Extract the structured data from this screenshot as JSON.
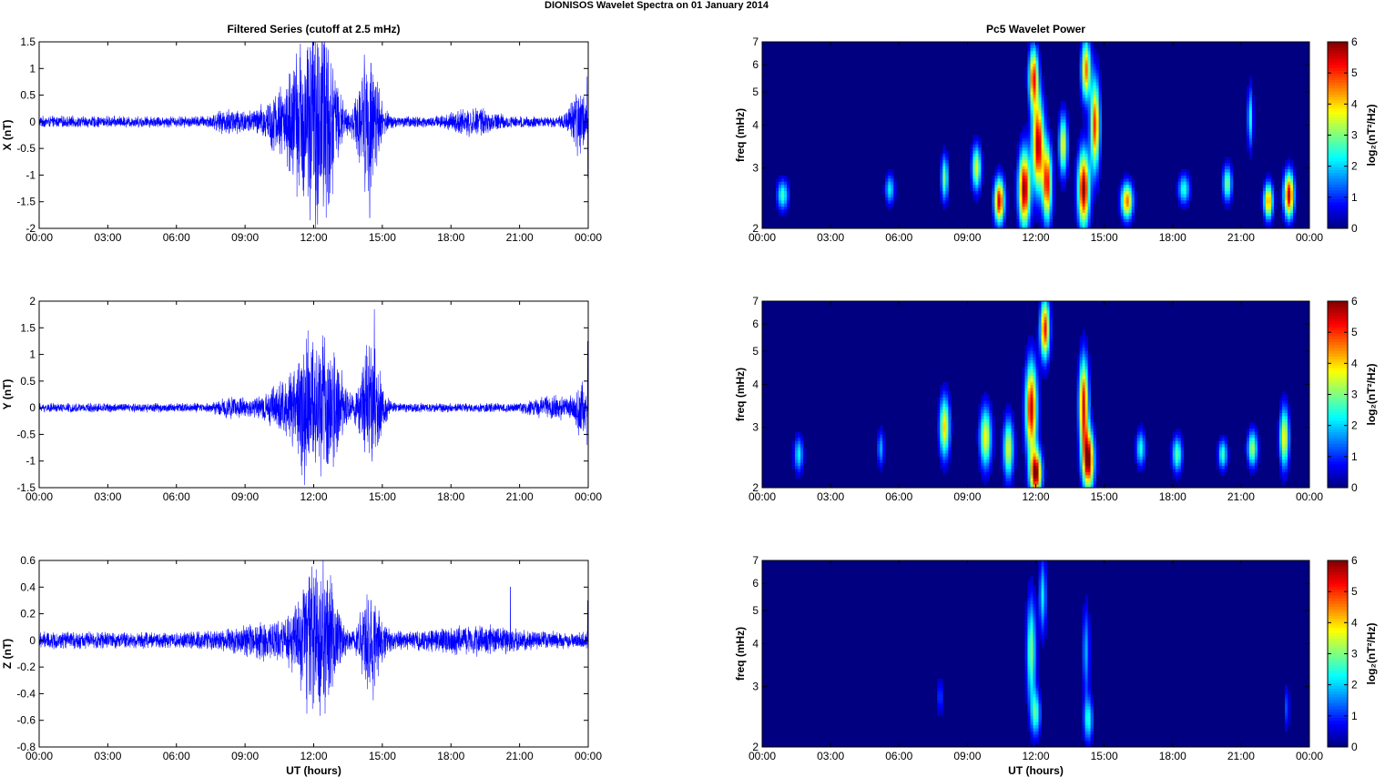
{
  "figure_title": "DIONISOS Wavelet Spectra on 01 January   2014",
  "colors": {
    "trace": "#0000ff",
    "axis": "#000000",
    "background": "#000080"
  },
  "chart_data": [
    {
      "type": "line",
      "panel": "filtered-x",
      "title": "Filtered Series (cutoff at 2.5 mHz)",
      "xlabel": "",
      "ylabel": "X (nT)",
      "x_ticks": [
        "00:00",
        "03:00",
        "06:00",
        "09:00",
        "12:00",
        "15:00",
        "18:00",
        "21:00",
        "00:00"
      ],
      "xlim_hours": [
        0,
        24
      ],
      "ylim": [
        -2,
        1.5
      ],
      "y_ticks": [
        "1.5",
        "1",
        "0.5",
        "0",
        "-0.5",
        "-1",
        "-1.5",
        "-2"
      ],
      "series": [
        {
          "baseline_amplitude": 0.1,
          "bursts": [
            {
              "t": 11.6,
              "w": 0.7,
              "a": 1.3
            },
            {
              "t": 12.5,
              "w": 0.6,
              "a": 1.4
            },
            {
              "t": 14.4,
              "w": 0.5,
              "a": 1.2
            },
            {
              "t": 10.4,
              "w": 0.8,
              "a": 0.4
            },
            {
              "t": 8.5,
              "w": 0.8,
              "a": 0.15
            },
            {
              "t": 19.0,
              "w": 1.0,
              "a": 0.15
            },
            {
              "t": 23.6,
              "w": 0.4,
              "a": 0.5
            }
          ],
          "extremes": [
            {
              "t": 11.75,
              "v": -1.4
            },
            {
              "t": 11.85,
              "v": 1.4
            },
            {
              "t": 12.45,
              "v": 1.45
            },
            {
              "t": 12.55,
              "v": -1.8
            },
            {
              "t": 14.45,
              "v": -1.8
            },
            {
              "t": 14.5,
              "v": 1.1
            },
            {
              "t": 23.95,
              "v": 0.85
            },
            {
              "t": 23.98,
              "v": -1.05
            }
          ]
        }
      ]
    },
    {
      "type": "line",
      "panel": "filtered-y",
      "title": "",
      "xlabel": "",
      "ylabel": "Y (nT)",
      "x_ticks": [
        "00:00",
        "03:00",
        "06:00",
        "09:00",
        "12:00",
        "15:00",
        "18:00",
        "21:00",
        "00:00"
      ],
      "xlim_hours": [
        0,
        24
      ],
      "ylim": [
        -1.5,
        2
      ],
      "y_ticks": [
        "2",
        "1.5",
        "1",
        "0.5",
        "0",
        "-0.5",
        "-1",
        "-1.5"
      ],
      "series": [
        {
          "baseline_amplitude": 0.08,
          "bursts": [
            {
              "t": 11.8,
              "w": 0.8,
              "a": 1.1
            },
            {
              "t": 12.8,
              "w": 0.6,
              "a": 0.8
            },
            {
              "t": 14.5,
              "w": 0.5,
              "a": 1.1
            },
            {
              "t": 10.5,
              "w": 0.8,
              "a": 0.3
            },
            {
              "t": 8.5,
              "w": 0.8,
              "a": 0.12
            },
            {
              "t": 22.5,
              "w": 1.0,
              "a": 0.15
            },
            {
              "t": 23.7,
              "w": 0.3,
              "a": 0.4
            }
          ],
          "extremes": [
            {
              "t": 11.6,
              "v": -1.45
            },
            {
              "t": 11.75,
              "v": 1.45
            },
            {
              "t": 12.6,
              "v": -1.05
            },
            {
              "t": 14.65,
              "v": 1.85
            },
            {
              "t": 14.55,
              "v": -0.9
            },
            {
              "t": 23.97,
              "v": 1.25
            },
            {
              "t": 23.95,
              "v": -0.7
            }
          ]
        }
      ]
    },
    {
      "type": "line",
      "panel": "filtered-z",
      "title": "",
      "xlabel": "UT (hours)",
      "ylabel": "Z (nT)",
      "x_ticks": [
        "00:00",
        "03:00",
        "06:00",
        "09:00",
        "12:00",
        "15:00",
        "18:00",
        "21:00",
        "00:00"
      ],
      "xlim_hours": [
        0,
        24
      ],
      "ylim": [
        -0.8,
        0.6
      ],
      "y_ticks": [
        "0.6",
        "0.4",
        "0.2",
        "0",
        "-0.2",
        "-0.4",
        "-0.6",
        "-0.8"
      ],
      "series": [
        {
          "baseline_amplitude": 0.06,
          "bursts": [
            {
              "t": 11.8,
              "w": 0.7,
              "a": 0.35
            },
            {
              "t": 12.5,
              "w": 0.6,
              "a": 0.35
            },
            {
              "t": 14.5,
              "w": 0.5,
              "a": 0.3
            },
            {
              "t": 10.0,
              "w": 1.5,
              "a": 0.08
            },
            {
              "t": 19.0,
              "w": 2.0,
              "a": 0.05
            }
          ],
          "extremes": [
            {
              "t": 11.7,
              "v": -0.55
            },
            {
              "t": 11.8,
              "v": 0.48
            },
            {
              "t": 12.5,
              "v": -0.55
            },
            {
              "t": 12.6,
              "v": 0.45
            },
            {
              "t": 14.6,
              "v": -0.45
            },
            {
              "t": 14.5,
              "v": 0.3
            },
            {
              "t": 20.6,
              "v": 0.4
            },
            {
              "t": 23.97,
              "v": 0.3
            }
          ]
        }
      ]
    },
    {
      "type": "heatmap",
      "panel": "wavelet-x",
      "title": "Pc5 Wavelet Power",
      "xlabel": "",
      "ylabel": "freq (mHz)",
      "x_ticks": [
        "00:00",
        "03:00",
        "06:00",
        "09:00",
        "12:00",
        "15:00",
        "18:00",
        "21:00",
        "00:00"
      ],
      "xlim_hours": [
        0,
        24
      ],
      "ylim_mhz": [
        2,
        7
      ],
      "y_scale": "log",
      "y_ticks": [
        "7",
        "6",
        "5",
        "4",
        "3",
        "2"
      ],
      "colorbar": {
        "label": "log₂(nT²/Hz)",
        "range": [
          0,
          6
        ],
        "ticks": [
          "6",
          "5",
          "4",
          "3",
          "2",
          "1",
          "0"
        ]
      },
      "blobs": [
        {
          "t": 10.4,
          "f": 2.4,
          "w": 0.22,
          "h": 0.15,
          "p": 5.5
        },
        {
          "t": 11.5,
          "f": 2.6,
          "w": 0.25,
          "h": 0.25,
          "p": 6.0
        },
        {
          "t": 12.1,
          "f": 3.5,
          "w": 0.25,
          "h": 0.3,
          "p": 5.8
        },
        {
          "t": 12.5,
          "f": 2.7,
          "w": 0.2,
          "h": 0.25,
          "p": 5.2
        },
        {
          "t": 13.2,
          "f": 3.5,
          "w": 0.18,
          "h": 0.2,
          "p": 3.8
        },
        {
          "t": 14.1,
          "f": 2.6,
          "w": 0.25,
          "h": 0.25,
          "p": 6.0
        },
        {
          "t": 14.6,
          "f": 4.0,
          "w": 0.2,
          "h": 0.3,
          "p": 5.0
        },
        {
          "t": 16.0,
          "f": 2.4,
          "w": 0.25,
          "h": 0.12,
          "p": 4.6
        },
        {
          "t": 23.1,
          "f": 2.5,
          "w": 0.22,
          "h": 0.15,
          "p": 5.6
        },
        {
          "t": 22.2,
          "f": 2.4,
          "w": 0.2,
          "h": 0.12,
          "p": 4.4
        },
        {
          "t": 9.4,
          "f": 3.0,
          "w": 0.2,
          "h": 0.15,
          "p": 3.6
        },
        {
          "t": 8.0,
          "f": 2.8,
          "w": 0.15,
          "h": 0.15,
          "p": 3.0
        },
        {
          "t": 0.9,
          "f": 2.5,
          "w": 0.25,
          "h": 0.1,
          "p": 2.6
        },
        {
          "t": 18.5,
          "f": 2.6,
          "w": 0.25,
          "h": 0.1,
          "p": 2.5
        },
        {
          "t": 5.6,
          "f": 2.6,
          "w": 0.2,
          "h": 0.1,
          "p": 2.2
        },
        {
          "t": 20.4,
          "f": 2.7,
          "w": 0.2,
          "h": 0.12,
          "p": 3.0
        },
        {
          "t": 11.9,
          "f": 5.5,
          "w": 0.2,
          "h": 0.2,
          "p": 5.0
        },
        {
          "t": 14.2,
          "f": 5.8,
          "w": 0.2,
          "h": 0.2,
          "p": 4.6
        },
        {
          "t": 21.4,
          "f": 4.2,
          "w": 0.12,
          "h": 0.2,
          "p": 2.4
        }
      ]
    },
    {
      "type": "heatmap",
      "panel": "wavelet-y",
      "title": "",
      "xlabel": "",
      "ylabel": "freq (mHz)",
      "x_ticks": [
        "00:00",
        "03:00",
        "06:00",
        "09:00",
        "12:00",
        "15:00",
        "18:00",
        "21:00",
        "00:00"
      ],
      "xlim_hours": [
        0,
        24
      ],
      "ylim_mhz": [
        2,
        7
      ],
      "y_scale": "log",
      "y_ticks": [
        "7",
        "6",
        "5",
        "4",
        "3",
        "2"
      ],
      "colorbar": {
        "label": "log₂(nT²/Hz)",
        "range": [
          0,
          6
        ],
        "ticks": [
          "6",
          "5",
          "4",
          "3",
          "2",
          "1",
          "0"
        ]
      },
      "blobs": [
        {
          "t": 12.0,
          "f": 2.2,
          "w": 0.25,
          "h": 0.15,
          "p": 6.0
        },
        {
          "t": 11.8,
          "f": 3.4,
          "w": 0.25,
          "h": 0.3,
          "p": 5.6
        },
        {
          "t": 14.3,
          "f": 2.4,
          "w": 0.25,
          "h": 0.2,
          "p": 6.0
        },
        {
          "t": 14.1,
          "f": 3.5,
          "w": 0.2,
          "h": 0.3,
          "p": 5.4
        },
        {
          "t": 12.4,
          "f": 5.8,
          "w": 0.2,
          "h": 0.2,
          "p": 5.2
        },
        {
          "t": 8.0,
          "f": 3.0,
          "w": 0.22,
          "h": 0.2,
          "p": 4.0
        },
        {
          "t": 9.8,
          "f": 2.8,
          "w": 0.25,
          "h": 0.2,
          "p": 3.8
        },
        {
          "t": 10.8,
          "f": 2.6,
          "w": 0.22,
          "h": 0.2,
          "p": 3.6
        },
        {
          "t": 22.9,
          "f": 2.8,
          "w": 0.2,
          "h": 0.2,
          "p": 3.8
        },
        {
          "t": 21.5,
          "f": 2.6,
          "w": 0.22,
          "h": 0.12,
          "p": 3.2
        },
        {
          "t": 18.2,
          "f": 2.5,
          "w": 0.22,
          "h": 0.12,
          "p": 2.8
        },
        {
          "t": 1.6,
          "f": 2.5,
          "w": 0.2,
          "h": 0.12,
          "p": 2.2
        },
        {
          "t": 16.6,
          "f": 2.6,
          "w": 0.2,
          "h": 0.12,
          "p": 2.4
        },
        {
          "t": 20.2,
          "f": 2.5,
          "w": 0.2,
          "h": 0.1,
          "p": 2.6
        },
        {
          "t": 5.2,
          "f": 2.6,
          "w": 0.15,
          "h": 0.12,
          "p": 1.8
        }
      ]
    },
    {
      "type": "heatmap",
      "panel": "wavelet-z",
      "title": "",
      "xlabel": "UT (hours)",
      "ylabel": "freq (mHz)",
      "x_ticks": [
        "00:00",
        "03:00",
        "06:00",
        "09:00",
        "12:00",
        "15:00",
        "18:00",
        "21:00",
        "00:00"
      ],
      "xlim_hours": [
        0,
        24
      ],
      "ylim_mhz": [
        2,
        7
      ],
      "y_scale": "log",
      "y_ticks": [
        "7",
        "6",
        "5",
        "4",
        "3",
        "2"
      ],
      "colorbar": {
        "label": "log₂(nT²/Hz)",
        "range": [
          0,
          6
        ],
        "ticks": [
          "6",
          "5",
          "4",
          "3",
          "2",
          "1",
          "0"
        ]
      },
      "blobs": [
        {
          "t": 11.8,
          "f": 3.8,
          "w": 0.2,
          "h": 0.35,
          "p": 3.0
        },
        {
          "t": 12.0,
          "f": 2.5,
          "w": 0.2,
          "h": 0.15,
          "p": 2.6
        },
        {
          "t": 12.3,
          "f": 5.5,
          "w": 0.15,
          "h": 0.25,
          "p": 2.2
        },
        {
          "t": 14.3,
          "f": 2.4,
          "w": 0.2,
          "h": 0.15,
          "p": 2.4
        },
        {
          "t": 14.2,
          "f": 3.8,
          "w": 0.15,
          "h": 0.3,
          "p": 1.8
        },
        {
          "t": 7.8,
          "f": 2.8,
          "w": 0.12,
          "h": 0.12,
          "p": 1.2
        },
        {
          "t": 23.0,
          "f": 2.6,
          "w": 0.12,
          "h": 0.15,
          "p": 1.2
        }
      ]
    }
  ]
}
